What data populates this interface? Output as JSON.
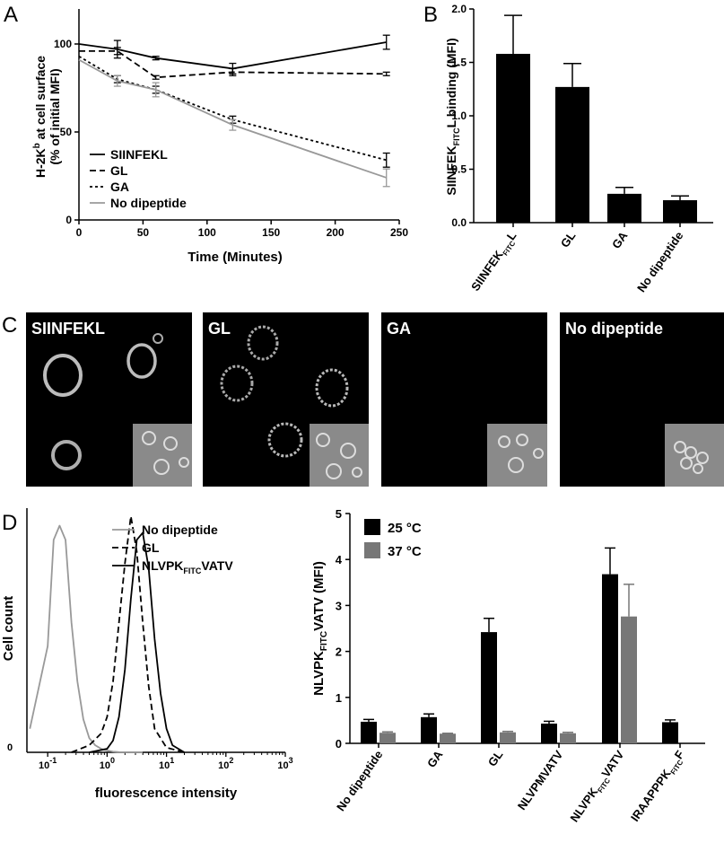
{
  "panel_letters": [
    "A",
    "B",
    "C",
    "D"
  ],
  "micro_labels": [
    "SIINFEKL",
    "GL",
    "GA",
    "No dipeptide"
  ],
  "chart_data": [
    {
      "type": "line",
      "ylabel_lines": [
        "H-2K",
        "b",
        " at cell surface",
        "(% of initial MFI)"
      ],
      "xlabel": "Time (Minutes)",
      "xlim": [
        0,
        250
      ],
      "ylim": [
        0,
        100
      ],
      "xticks": [
        0,
        50,
        100,
        150,
        200,
        250
      ],
      "yticks": [
        0,
        50,
        100
      ],
      "legend_position": "bottom-left",
      "series": [
        {
          "name": "SIINFEKL",
          "dash": "solid",
          "color": "#000000",
          "x": [
            0,
            30,
            60,
            120,
            240
          ],
          "y": [
            100,
            97,
            92,
            86,
            101
          ],
          "err": [
            0,
            5,
            1,
            3,
            4
          ]
        },
        {
          "name": "GL",
          "dash": "long",
          "color": "#000000",
          "x": [
            0,
            30,
            60,
            120,
            240
          ],
          "y": [
            96,
            96,
            81,
            84,
            83
          ],
          "err": [
            0,
            2,
            1,
            2,
            1
          ]
        },
        {
          "name": "GA",
          "dash": "short",
          "color": "#000000",
          "x": [
            0,
            30,
            60,
            120,
            240
          ],
          "y": [
            93,
            80,
            74,
            57,
            34
          ],
          "err": [
            0,
            2,
            2,
            2,
            4
          ]
        },
        {
          "name": "No dipeptide",
          "dash": "solid",
          "color": "#999999",
          "x": [
            0,
            30,
            60,
            120,
            240
          ],
          "y": [
            91,
            79,
            74,
            54,
            24
          ],
          "err": [
            0,
            3,
            4,
            3,
            5
          ]
        }
      ]
    },
    {
      "type": "bar",
      "ylabel": {
        "pre": "SIINFEK",
        "sub": "FITC",
        "post": "L binding (MFI)"
      },
      "ylim": [
        0,
        2.0
      ],
      "yticks": [
        "0.0",
        "0.5",
        "1.0",
        "1.5",
        "2.0"
      ],
      "categories": [
        {
          "pre": "SIINFEK",
          "sub": "FITC",
          "post": "L"
        },
        {
          "pre": "GL",
          "sub": "",
          "post": ""
        },
        {
          "pre": "GA",
          "sub": "",
          "post": ""
        },
        {
          "pre": "No dipeptide",
          "sub": "",
          "post": ""
        }
      ],
      "values": [
        1.58,
        1.27,
        0.27,
        0.21
      ],
      "errors": [
        0.36,
        0.22,
        0.06,
        0.04
      ],
      "color": "#000000"
    },
    {
      "type": "line",
      "ylabel": "Cell count",
      "xlabel": "fluorescence intensity",
      "xscale": "log",
      "xticks": [
        {
          "base": "10",
          "exp": "-1"
        },
        {
          "base": "10",
          "exp": "0"
        },
        {
          "base": "10",
          "exp": "1"
        },
        {
          "base": "10",
          "exp": "2"
        },
        {
          "base": "10",
          "exp": "3"
        }
      ],
      "ytick_label": "0",
      "legend_position": "top-right",
      "series": [
        {
          "name": "No dipeptide",
          "dash": "solid",
          "color": "#999999",
          "x": [
            -1.3,
            -1.0,
            -0.9,
            -0.8,
            -0.7,
            -0.6,
            -0.5,
            -0.4,
            -0.3,
            -0.2,
            -0.1,
            0.0,
            0.1,
            0.2,
            0.4,
            0.6
          ],
          "y": [
            0.1,
            0.45,
            0.9,
            0.96,
            0.9,
            0.55,
            0.3,
            0.14,
            0.06,
            0.03,
            0.015,
            0.008,
            0.003,
            0.001,
            0.0,
            0.0
          ]
        },
        {
          "name": "GL",
          "dash": "long",
          "color": "#000000",
          "x": [
            -0.6,
            -0.3,
            -0.1,
            0.0,
            0.1,
            0.2,
            0.3,
            0.4,
            0.5,
            0.6,
            0.7,
            0.8,
            1.0,
            1.3
          ],
          "y": [
            0.0,
            0.03,
            0.08,
            0.15,
            0.3,
            0.55,
            0.8,
            1.0,
            0.85,
            0.55,
            0.28,
            0.1,
            0.02,
            0.0
          ]
        },
        {
          "name": "NLVPKFITCVATV",
          "dash": "solid",
          "color": "#000000",
          "x": [
            -0.3,
            0.0,
            0.1,
            0.2,
            0.3,
            0.4,
            0.5,
            0.6,
            0.7,
            0.8,
            0.9,
            1.0,
            1.1,
            1.3
          ],
          "y": [
            0.0,
            0.015,
            0.05,
            0.15,
            0.35,
            0.65,
            0.9,
            0.93,
            0.78,
            0.48,
            0.25,
            0.1,
            0.03,
            0.0
          ]
        }
      ],
      "legend_labels": [
        {
          "pre": "No dipeptide",
          "sub": "",
          "post": ""
        },
        {
          "pre": "GL",
          "sub": "",
          "post": ""
        },
        {
          "pre": "NLVPK",
          "sub": "FITC",
          "post": "VATV"
        }
      ]
    },
    {
      "type": "bar",
      "ylabel": {
        "pre": "NLVPK",
        "sub": "FITC",
        "post": "VATV (MFI)"
      },
      "ylim": [
        0,
        5
      ],
      "yticks": [
        "0",
        "1",
        "2",
        "3",
        "4",
        "5"
      ],
      "categories": [
        {
          "pre": "No dipeptide",
          "sub": "",
          "post": ""
        },
        {
          "pre": "GA",
          "sub": "",
          "post": ""
        },
        {
          "pre": "GL",
          "sub": "",
          "post": ""
        },
        {
          "pre": "NLVPMVATV",
          "sub": "",
          "post": ""
        },
        {
          "pre": "NLVPK",
          "sub": "FITC",
          "post": "VATV"
        },
        {
          "pre": "IRAAPPPK",
          "sub": "FITC",
          "post": "F"
        }
      ],
      "legend_position": "top-left",
      "series": [
        {
          "name": "25 °C",
          "color": "#000000",
          "values": [
            0.47,
            0.57,
            2.42,
            0.43,
            3.68,
            0.46
          ],
          "errors": [
            0.05,
            0.07,
            0.3,
            0.05,
            0.57,
            0.05
          ]
        },
        {
          "name": "37 °C",
          "color": "#777777",
          "values": [
            0.23,
            0.21,
            0.24,
            0.22,
            2.76,
            null
          ],
          "errors": [
            0.02,
            0.01,
            0.02,
            0.02,
            0.7,
            null
          ]
        }
      ]
    }
  ]
}
